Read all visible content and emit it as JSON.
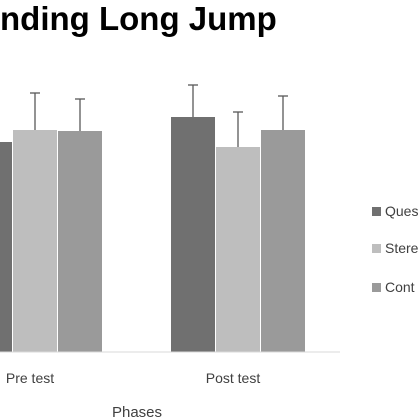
{
  "chart_data": {
    "type": "bar",
    "title": "nding Long Jump",
    "xlabel": "Phases",
    "ylabel": "",
    "categories": [
      "Pre test",
      "Post test"
    ],
    "ylim": [
      0,
      280
    ],
    "grid": false,
    "legend_position": "right",
    "series": [
      {
        "name": "Ques",
        "color": "#707070",
        "values": [
          210,
          235
        ],
        "errors": [
          null,
          32
        ]
      },
      {
        "name": "Stere",
        "color": "#bebebe",
        "values": [
          222,
          205
        ],
        "errors": [
          37,
          35
        ]
      },
      {
        "name": "Cont",
        "color": "#9a9a9a",
        "values": [
          221,
          222
        ],
        "errors": [
          32,
          34
        ]
      }
    ]
  }
}
